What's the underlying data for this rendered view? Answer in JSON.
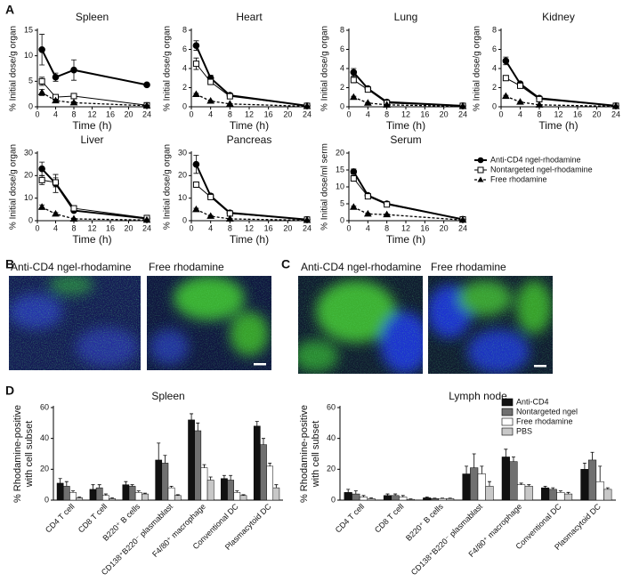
{
  "panels": {
    "a": "A",
    "b": "B",
    "c": "C",
    "d": "D",
    "images": [
      "Anti-CD4 ngel-rhodamine",
      "Free rhodamine",
      "Anti-CD4 ngel-rhodamine",
      "Free rhodamine"
    ]
  },
  "chart_data": [
    {
      "type": "line",
      "title": "Spleen",
      "xlabel": "Time (h)",
      "ylabel": "% Initial dose/g organ",
      "x": [
        1,
        4,
        8,
        24
      ],
      "xlim": [
        0,
        24
      ],
      "xticks": [
        0,
        4,
        8,
        12,
        16,
        20,
        24
      ],
      "ylim": [
        0,
        15
      ],
      "yticks": [
        0,
        5,
        10,
        15
      ],
      "series": [
        {
          "color": "#000000",
          "marker": "circle",
          "linewidth": 2,
          "dash": false,
          "values": [
            11.2,
            5.8,
            7.2,
            4.3
          ],
          "errors": [
            3.0,
            0.8,
            2.0,
            0.3
          ]
        },
        {
          "color": "#000000",
          "marker": "square",
          "linewidth": 1,
          "dash": false,
          "values": [
            5.0,
            1.9,
            2.1,
            0.3
          ],
          "errors": [
            0.8,
            0.3,
            0.4,
            0.1
          ]
        },
        {
          "color": "#000000",
          "marker": "triangle",
          "linewidth": 1.3,
          "dash": true,
          "values": [
            2.8,
            1.2,
            0.8,
            0.2
          ],
          "errors": [
            0.6,
            0.3,
            0.2,
            0.05
          ]
        }
      ]
    },
    {
      "type": "line",
      "title": "Heart",
      "xlabel": "Time (h)",
      "ylabel": "% Initial dose/g organ",
      "x": [
        1,
        4,
        8,
        24
      ],
      "xlim": [
        0,
        24
      ],
      "xticks": [
        0,
        4,
        8,
        12,
        16,
        20,
        24
      ],
      "ylim": [
        0,
        8
      ],
      "yticks": [
        0,
        2,
        4,
        6,
        8
      ],
      "series": [
        {
          "color": "#000000",
          "marker": "circle",
          "linewidth": 2,
          "dash": false,
          "values": [
            6.4,
            3.0,
            1.2,
            0.1
          ],
          "errors": [
            0.5,
            0.3,
            0.1,
            0.02
          ]
        },
        {
          "color": "#000000",
          "marker": "square",
          "linewidth": 1,
          "dash": false,
          "values": [
            4.5,
            2.6,
            1.1,
            0.1
          ],
          "errors": [
            0.6,
            0.2,
            0.1,
            0.02
          ]
        },
        {
          "color": "#000000",
          "marker": "triangle",
          "linewidth": 1.3,
          "dash": true,
          "values": [
            1.3,
            0.6,
            0.3,
            0.05
          ],
          "errors": [
            0.1,
            0.05,
            0.03,
            0.01
          ]
        }
      ]
    },
    {
      "type": "line",
      "title": "Lung",
      "xlabel": "Time (h)",
      "ylabel": "% Initial dose/g organ",
      "x": [
        1,
        4,
        8,
        24
      ],
      "xlim": [
        0,
        24
      ],
      "xticks": [
        0,
        4,
        8,
        12,
        16,
        20,
        24
      ],
      "ylim": [
        0,
        8
      ],
      "yticks": [
        0,
        2,
        4,
        6,
        8
      ],
      "series": [
        {
          "color": "#000000",
          "marker": "circle",
          "linewidth": 2,
          "dash": false,
          "values": [
            3.6,
            1.9,
            0.5,
            0.1
          ],
          "errors": [
            0.4,
            0.2,
            0.05,
            0.02
          ]
        },
        {
          "color": "#000000",
          "marker": "square",
          "linewidth": 1,
          "dash": false,
          "values": [
            2.8,
            1.8,
            0.4,
            0.1
          ],
          "errors": [
            0.3,
            0.2,
            0.05,
            0.02
          ]
        },
        {
          "color": "#000000",
          "marker": "triangle",
          "linewidth": 1.3,
          "dash": true,
          "values": [
            1.0,
            0.4,
            0.2,
            0.05
          ],
          "errors": [
            0.1,
            0.05,
            0.03,
            0.01
          ]
        }
      ]
    },
    {
      "type": "line",
      "title": "Kidney",
      "xlabel": "Time (h)",
      "ylabel": "% Initial dose/g organ",
      "x": [
        1,
        4,
        8,
        24
      ],
      "xlim": [
        0,
        24
      ],
      "xticks": [
        0,
        4,
        8,
        12,
        16,
        20,
        24
      ],
      "ylim": [
        0,
        8
      ],
      "yticks": [
        0,
        2,
        4,
        6,
        8
      ],
      "series": [
        {
          "color": "#000000",
          "marker": "circle",
          "linewidth": 2,
          "dash": false,
          "values": [
            4.8,
            2.4,
            0.9,
            0.1
          ],
          "errors": [
            0.4,
            0.2,
            0.1,
            0.02
          ]
        },
        {
          "color": "#000000",
          "marker": "square",
          "linewidth": 1,
          "dash": false,
          "values": [
            3.0,
            2.2,
            0.8,
            0.1
          ],
          "errors": [
            0.2,
            0.2,
            0.1,
            0.02
          ]
        },
        {
          "color": "#000000",
          "marker": "triangle",
          "linewidth": 1.3,
          "dash": true,
          "values": [
            1.1,
            0.5,
            0.2,
            0.05
          ],
          "errors": [
            0.1,
            0.05,
            0.03,
            0.01
          ]
        }
      ]
    },
    {
      "type": "line",
      "title": "Liver",
      "xlabel": "Time (h)",
      "ylabel": "% Initial dose/g organ",
      "x": [
        1,
        4,
        8,
        24
      ],
      "xlim": [
        0,
        24
      ],
      "xticks": [
        0,
        4,
        8,
        12,
        16,
        20,
        24
      ],
      "ylim": [
        0,
        30
      ],
      "yticks": [
        0,
        10,
        20,
        30
      ],
      "series": [
        {
          "color": "#000000",
          "marker": "circle",
          "linewidth": 2,
          "dash": false,
          "values": [
            23,
            16.5,
            4.5,
            1.0
          ],
          "errors": [
            3,
            4,
            0.5,
            0.2
          ]
        },
        {
          "color": "#000000",
          "marker": "square",
          "linewidth": 1,
          "dash": false,
          "values": [
            18,
            17,
            5.5,
            1.2
          ],
          "errors": [
            2,
            2,
            0.5,
            0.2
          ]
        },
        {
          "color": "#000000",
          "marker": "triangle",
          "linewidth": 1.3,
          "dash": true,
          "values": [
            6,
            3,
            0.8,
            0.3
          ],
          "errors": [
            1,
            0.6,
            0.2,
            0.1
          ]
        }
      ]
    },
    {
      "type": "line",
      "title": "Pancreas",
      "xlabel": "Time (h)",
      "ylabel": "% Initial dose/g organ",
      "x": [
        1,
        4,
        8,
        24
      ],
      "xlim": [
        0,
        24
      ],
      "xticks": [
        0,
        4,
        8,
        12,
        16,
        20,
        24
      ],
      "ylim": [
        0,
        30
      ],
      "yticks": [
        0,
        10,
        20,
        30
      ],
      "series": [
        {
          "color": "#000000",
          "marker": "circle",
          "linewidth": 2,
          "dash": false,
          "values": [
            25,
            11,
            3.5,
            0.5
          ],
          "errors": [
            4,
            1,
            0.3,
            0.1
          ]
        },
        {
          "color": "#000000",
          "marker": "square",
          "linewidth": 1,
          "dash": false,
          "values": [
            16,
            10.5,
            3.2,
            0.5
          ],
          "errors": [
            1,
            1,
            0.3,
            0.1
          ]
        },
        {
          "color": "#000000",
          "marker": "triangle",
          "linewidth": 1.3,
          "dash": true,
          "values": [
            5,
            2,
            0.8,
            0.2
          ],
          "errors": [
            0.5,
            0.3,
            0.1,
            0.05
          ]
        }
      ]
    },
    {
      "type": "line",
      "title": "Serum",
      "xlabel": "Time (h)",
      "ylabel": "% Initial dose/ml serm",
      "legend": "right",
      "x": [
        1,
        4,
        8,
        24
      ],
      "xlim": [
        0,
        24
      ],
      "xticks": [
        0,
        4,
        8,
        12,
        16,
        20,
        24
      ],
      "ylim": [
        0,
        20
      ],
      "yticks": [
        0,
        5,
        10,
        15,
        20
      ],
      "series": [
        {
          "name": "Anti-CD4 ngel-rhodamine",
          "color": "#000000",
          "marker": "circle",
          "linewidth": 2,
          "dash": false,
          "values": [
            14.5,
            7.5,
            5.0,
            0.4
          ],
          "errors": [
            0.8,
            0.5,
            0.3,
            0.1
          ]
        },
        {
          "name": "Nontargeted ngel-rhodamine",
          "color": "#000000",
          "marker": "square",
          "linewidth": 1,
          "dash": false,
          "values": [
            12.5,
            7.2,
            4.8,
            0.4
          ],
          "errors": [
            0.8,
            0.4,
            0.3,
            0.1
          ]
        },
        {
          "name": "Free rhodamine",
          "color": "#000000",
          "marker": "triangle",
          "linewidth": 1.3,
          "dash": true,
          "values": [
            4,
            2,
            1.8,
            0.2
          ],
          "errors": [
            0.3,
            0.2,
            0.2,
            0.05
          ]
        }
      ]
    },
    {
      "type": "bar",
      "title": "Spleen",
      "ylabel": [
        "% Rhodamine-positive",
        "with cell subset"
      ],
      "categories": [
        "CD4 T cell",
        "CD8 T cell",
        "B220⁺ B cells",
        "CD138⁺B220⁻ plasmablast",
        "F4/80⁺ macrophage",
        "Conventional DC",
        "Plasmacytoid DC"
      ],
      "ylim": [
        0,
        60
      ],
      "yticks": [
        0,
        20,
        40,
        60
      ],
      "series": [
        {
          "color": "#111111",
          "values": [
            11,
            7,
            10,
            26,
            52,
            14,
            48
          ],
          "errors": [
            3,
            3,
            2,
            11,
            4,
            2,
            3
          ]
        },
        {
          "color": "#707070",
          "values": [
            9,
            8,
            9,
            24,
            45,
            13,
            36
          ],
          "errors": [
            3,
            2,
            1,
            5,
            5,
            3,
            4
          ]
        },
        {
          "color": "#ffffff",
          "values": [
            5,
            3,
            5,
            8,
            21,
            5,
            22
          ],
          "errors": [
            1,
            1,
            1,
            1,
            2,
            1,
            2
          ]
        },
        {
          "color": "#c8c8c8",
          "values": [
            1.5,
            1,
            4,
            3,
            13,
            3,
            8
          ],
          "errors": [
            0.5,
            0.5,
            0.5,
            0.5,
            2,
            0.5,
            2
          ]
        }
      ]
    },
    {
      "type": "bar",
      "title": "Lymph node",
      "ylabel": [
        "% Rhodamine-positive",
        "with cell subset"
      ],
      "legend": "upper right",
      "categories": [
        "CD4 T cell",
        "CD8 T cell",
        "B220⁺ B cells",
        "CD138⁺B220⁻ plasmablast",
        "F4/80⁺ macrophage",
        "Conventional DC",
        "Plasmacytoid DC"
      ],
      "ylim": [
        0,
        60
      ],
      "yticks": [
        0,
        20,
        40,
        60
      ],
      "series": [
        {
          "name": "Anti-CD4",
          "color": "#111111",
          "values": [
            5,
            3,
            1.5,
            17,
            28,
            8,
            20
          ],
          "errors": [
            2,
            1,
            0.5,
            5,
            5,
            1,
            4
          ]
        },
        {
          "name": "Nontargeted ngel",
          "color": "#707070",
          "values": [
            4,
            3,
            1,
            21,
            25,
            7,
            26
          ],
          "errors": [
            2,
            1,
            0.3,
            9,
            3,
            1,
            5
          ]
        },
        {
          "name": "Free rhodamine",
          "color": "#ffffff",
          "values": [
            2,
            2,
            1,
            17,
            10,
            5,
            12
          ],
          "errors": [
            1,
            1,
            0.3,
            5,
            1,
            1,
            10
          ]
        },
        {
          "name": "PBS",
          "color": "#c8c8c8",
          "values": [
            1,
            0.5,
            1,
            9,
            9,
            4,
            7
          ],
          "errors": [
            0.5,
            0.3,
            0.3,
            3,
            1,
            1,
            1
          ]
        }
      ]
    }
  ]
}
